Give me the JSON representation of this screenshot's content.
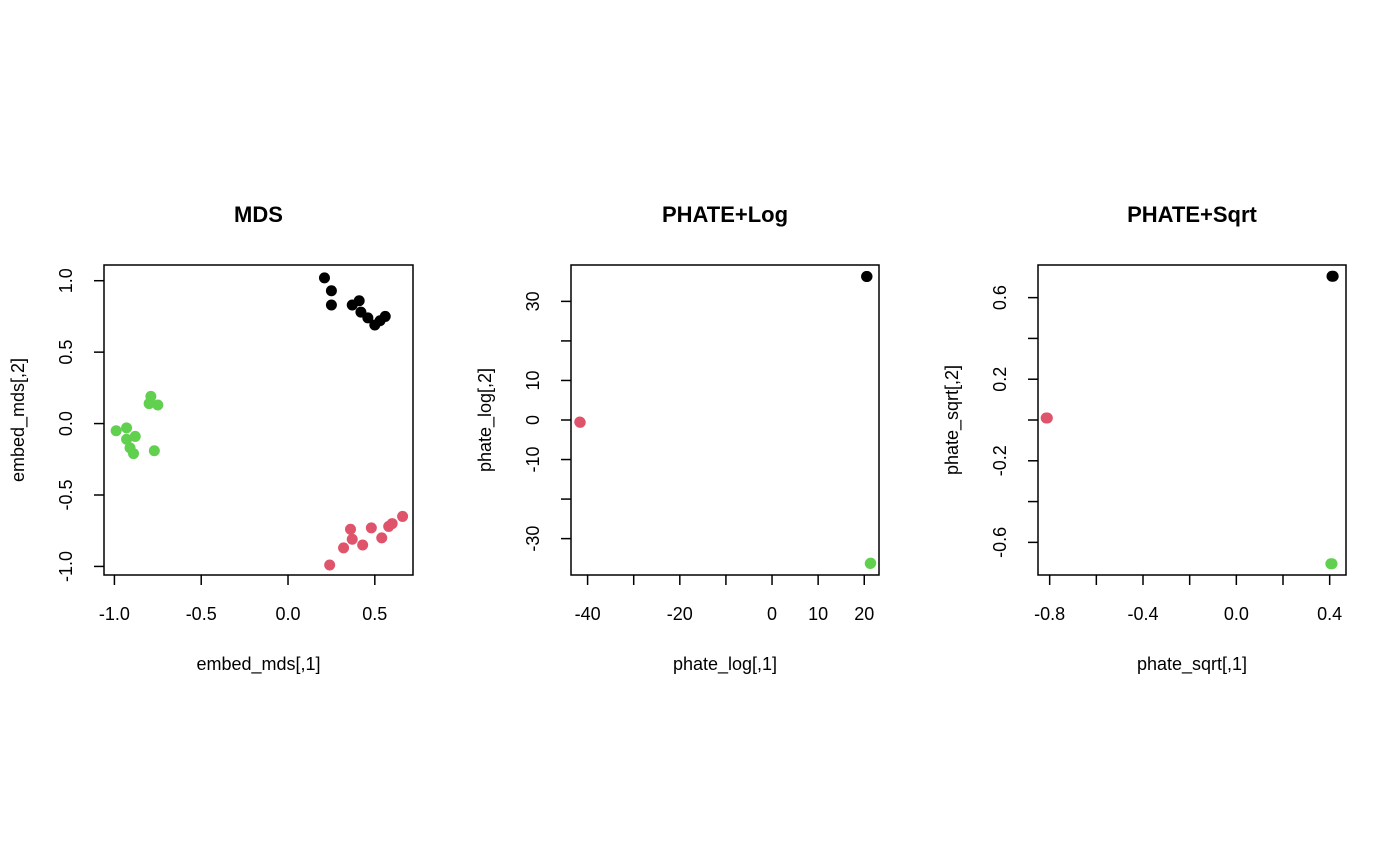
{
  "chart_data": [
    {
      "type": "scatter",
      "title": "MDS",
      "xlabel": "embed_mds[,1]",
      "ylabel": "embed_mds[,2]",
      "xlim": [
        -1.06,
        0.72
      ],
      "ylim": [
        -1.06,
        1.11
      ],
      "x_ticks": [
        -1.0,
        -0.5,
        0.0,
        0.5
      ],
      "x_tick_labels": [
        "-1.0",
        "-0.5",
        "0.0",
        "0.5"
      ],
      "y_ticks": [
        -1.0,
        -0.5,
        0.0,
        0.5,
        1.0
      ],
      "y_tick_labels": [
        "-1.0",
        "-0.5",
        "0.0",
        "0.5",
        "1.0"
      ],
      "grid": false,
      "series": [
        {
          "color": "#000000",
          "points": [
            [
              0.21,
              1.02
            ],
            [
              0.25,
              0.93
            ],
            [
              0.25,
              0.83
            ],
            [
              0.37,
              0.83
            ],
            [
              0.41,
              0.86
            ],
            [
              0.42,
              0.78
            ],
            [
              0.46,
              0.74
            ],
            [
              0.5,
              0.69
            ],
            [
              0.53,
              0.72
            ],
            [
              0.56,
              0.75
            ]
          ]
        },
        {
          "color": "#DF536B",
          "points": [
            [
              0.24,
              -0.99
            ],
            [
              0.32,
              -0.87
            ],
            [
              0.36,
              -0.74
            ],
            [
              0.37,
              -0.81
            ],
            [
              0.43,
              -0.85
            ],
            [
              0.48,
              -0.73
            ],
            [
              0.54,
              -0.8
            ],
            [
              0.58,
              -0.72
            ],
            [
              0.6,
              -0.7
            ],
            [
              0.66,
              -0.65
            ]
          ]
        },
        {
          "color": "#61D04F",
          "points": [
            [
              -0.99,
              -0.05
            ],
            [
              -0.93,
              -0.03
            ],
            [
              -0.93,
              -0.11
            ],
            [
              -0.91,
              -0.17
            ],
            [
              -0.89,
              -0.21
            ],
            [
              -0.88,
              -0.09
            ],
            [
              -0.8,
              0.14
            ],
            [
              -0.79,
              0.19
            ],
            [
              -0.77,
              -0.19
            ],
            [
              -0.75,
              0.13
            ]
          ]
        }
      ]
    },
    {
      "type": "scatter",
      "title": "PHATE+Log",
      "xlabel": "phate_log[,1]",
      "ylabel": "phate_log[,2]",
      "xlim": [
        -43.6,
        23.2
      ],
      "ylim": [
        -39.2,
        39.2
      ],
      "x_ticks": [
        -40,
        -30,
        -20,
        -10,
        0,
        10,
        20
      ],
      "x_tick_labels": [
        "-40",
        "",
        "-20",
        "",
        "0",
        "10",
        "20"
      ],
      "y_ticks": [
        -30,
        -20,
        -10,
        0,
        10,
        20,
        30
      ],
      "y_tick_labels": [
        "-30",
        "",
        "-10",
        "0",
        "10",
        "",
        "30"
      ],
      "grid": false,
      "series": [
        {
          "color": "#000000",
          "points": [
            [
              20.6,
              36.3
            ],
            [
              20.5,
              36.3
            ]
          ]
        },
        {
          "color": "#DF536B",
          "points": [
            [
              -41.7,
              -0.5
            ],
            [
              -41.6,
              -0.6
            ]
          ]
        },
        {
          "color": "#61D04F",
          "points": [
            [
              21.4,
              -36.2
            ],
            [
              21.3,
              -36.3
            ]
          ]
        }
      ]
    },
    {
      "type": "scatter",
      "title": "PHATE+Sqrt",
      "xlabel": "phate_sqrt[,1]",
      "ylabel": "phate_sqrt[,2]",
      "xlim": [
        -0.85,
        0.47
      ],
      "ylim": [
        -0.76,
        0.76
      ],
      "x_ticks": [
        -0.8,
        -0.6,
        -0.4,
        -0.2,
        0.0,
        0.2,
        0.4
      ],
      "x_tick_labels": [
        "-0.8",
        "",
        "-0.4",
        "",
        "0.0",
        "",
        "0.4"
      ],
      "y_ticks": [
        -0.6,
        -0.4,
        -0.2,
        0.0,
        0.2,
        0.4,
        0.6
      ],
      "y_tick_labels": [
        "-0.6",
        "",
        "-0.2",
        "",
        "0.2",
        "",
        "0.6"
      ],
      "grid": false,
      "series": [
        {
          "color": "#000000",
          "points": [
            [
              0.415,
              0.705
            ],
            [
              0.41,
              0.705
            ]
          ]
        },
        {
          "color": "#DF536B",
          "points": [
            [
              -0.815,
              0.01
            ],
            [
              -0.81,
              0.01
            ]
          ]
        },
        {
          "color": "#61D04F",
          "points": [
            [
              0.405,
              -0.705
            ],
            [
              0.41,
              -0.705
            ]
          ]
        }
      ]
    }
  ]
}
